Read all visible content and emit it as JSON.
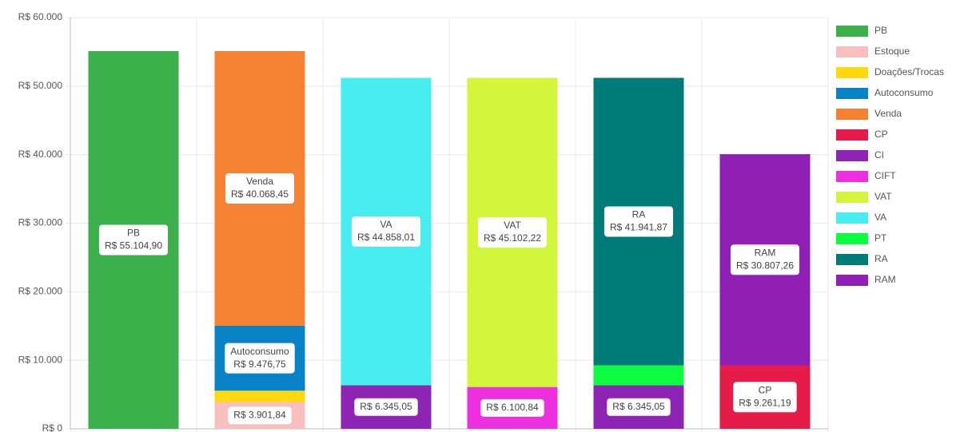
{
  "chart_data": {
    "type": "stacked_bar",
    "categories": [
      null,
      null,
      null,
      null,
      null,
      null
    ],
    "ylim": [
      0,
      60000
    ],
    "yticks": [
      {
        "value": 0,
        "label": "R$ 0"
      },
      {
        "value": 10000,
        "label": "R$ 10.000"
      },
      {
        "value": 20000,
        "label": "R$ 20.000"
      },
      {
        "value": 30000,
        "label": "R$ 30.000"
      },
      {
        "value": 40000,
        "label": "R$ 40.000"
      },
      {
        "value": 50000,
        "label": "R$ 50.000"
      },
      {
        "value": 60000,
        "label": "R$ 60.000"
      }
    ],
    "grid": true,
    "legend": "right",
    "series": [
      {
        "name": "PB",
        "color": "#3cb04b",
        "values": [
          55104.9,
          null,
          null,
          null,
          null,
          null
        ],
        "value_labels": [
          "R$ 55.104,90",
          null,
          null,
          null,
          null,
          null
        ]
      },
      {
        "name": "Estoque",
        "color": "#f7bfbe",
        "values": [
          null,
          3901.84,
          null,
          null,
          null,
          null
        ],
        "value_labels": [
          null,
          "R$ 3.901,84",
          null,
          null,
          null,
          null
        ]
      },
      {
        "name": "Doações/Trocas",
        "color": "#fed90f",
        "values": [
          null,
          1657.86,
          null,
          null,
          null,
          null
        ]
      },
      {
        "name": "Autoconsumo",
        "color": "#0a83c6",
        "values": [
          null,
          9476.75,
          null,
          null,
          null,
          null
        ],
        "value_labels": [
          null,
          "R$ 9.476,75",
          null,
          null,
          null,
          null
        ]
      },
      {
        "name": "Venda",
        "color": "#f58233",
        "values": [
          null,
          40068.45,
          null,
          null,
          null,
          null
        ],
        "value_labels": [
          null,
          "R$ 40.068,45",
          null,
          null,
          null,
          null
        ]
      },
      {
        "name": "CP",
        "color": "#e51b4a",
        "values": [
          null,
          null,
          null,
          null,
          null,
          9261.19
        ],
        "value_labels": [
          null,
          null,
          null,
          null,
          null,
          "R$ 9.261,19"
        ]
      },
      {
        "name": "CI",
        "color": "#8e24b4",
        "values": [
          null,
          null,
          6345.05,
          null,
          6345.05,
          null
        ],
        "value_labels": [
          null,
          null,
          "R$ 6.345,05",
          null,
          "R$ 6.345,05",
          null
        ]
      },
      {
        "name": "CIFT",
        "color": "#ee2fdf",
        "values": [
          null,
          null,
          null,
          6100.84,
          null,
          null
        ],
        "value_labels": [
          null,
          null,
          null,
          "R$ 6.100,84",
          null,
          null
        ]
      },
      {
        "name": "VAT",
        "color": "#d3f53b",
        "values": [
          null,
          null,
          null,
          45102.22,
          null,
          null
        ],
        "value_labels": [
          null,
          null,
          null,
          "R$ 45.102,22",
          null,
          null
        ]
      },
      {
        "name": "VA",
        "color": "#48eeef",
        "values": [
          null,
          null,
          44858.01,
          null,
          null,
          null
        ],
        "value_labels": [
          null,
          null,
          "R$ 44.858,01",
          null,
          null,
          null
        ]
      },
      {
        "name": "PT",
        "color": "#0cfc3f",
        "values": [
          null,
          null,
          null,
          null,
          2916.14,
          null
        ]
      },
      {
        "name": "RA",
        "color": "#007b79",
        "values": [
          null,
          null,
          null,
          null,
          41941.87,
          null
        ],
        "value_labels": [
          null,
          null,
          null,
          null,
          "R$ 41.941,87",
          null
        ]
      },
      {
        "name": "RAM",
        "color": "#8f1fb5",
        "values": [
          null,
          null,
          null,
          null,
          null,
          30807.26
        ],
        "value_labels": [
          null,
          null,
          null,
          null,
          null,
          "R$ 30.807,26"
        ]
      }
    ]
  }
}
